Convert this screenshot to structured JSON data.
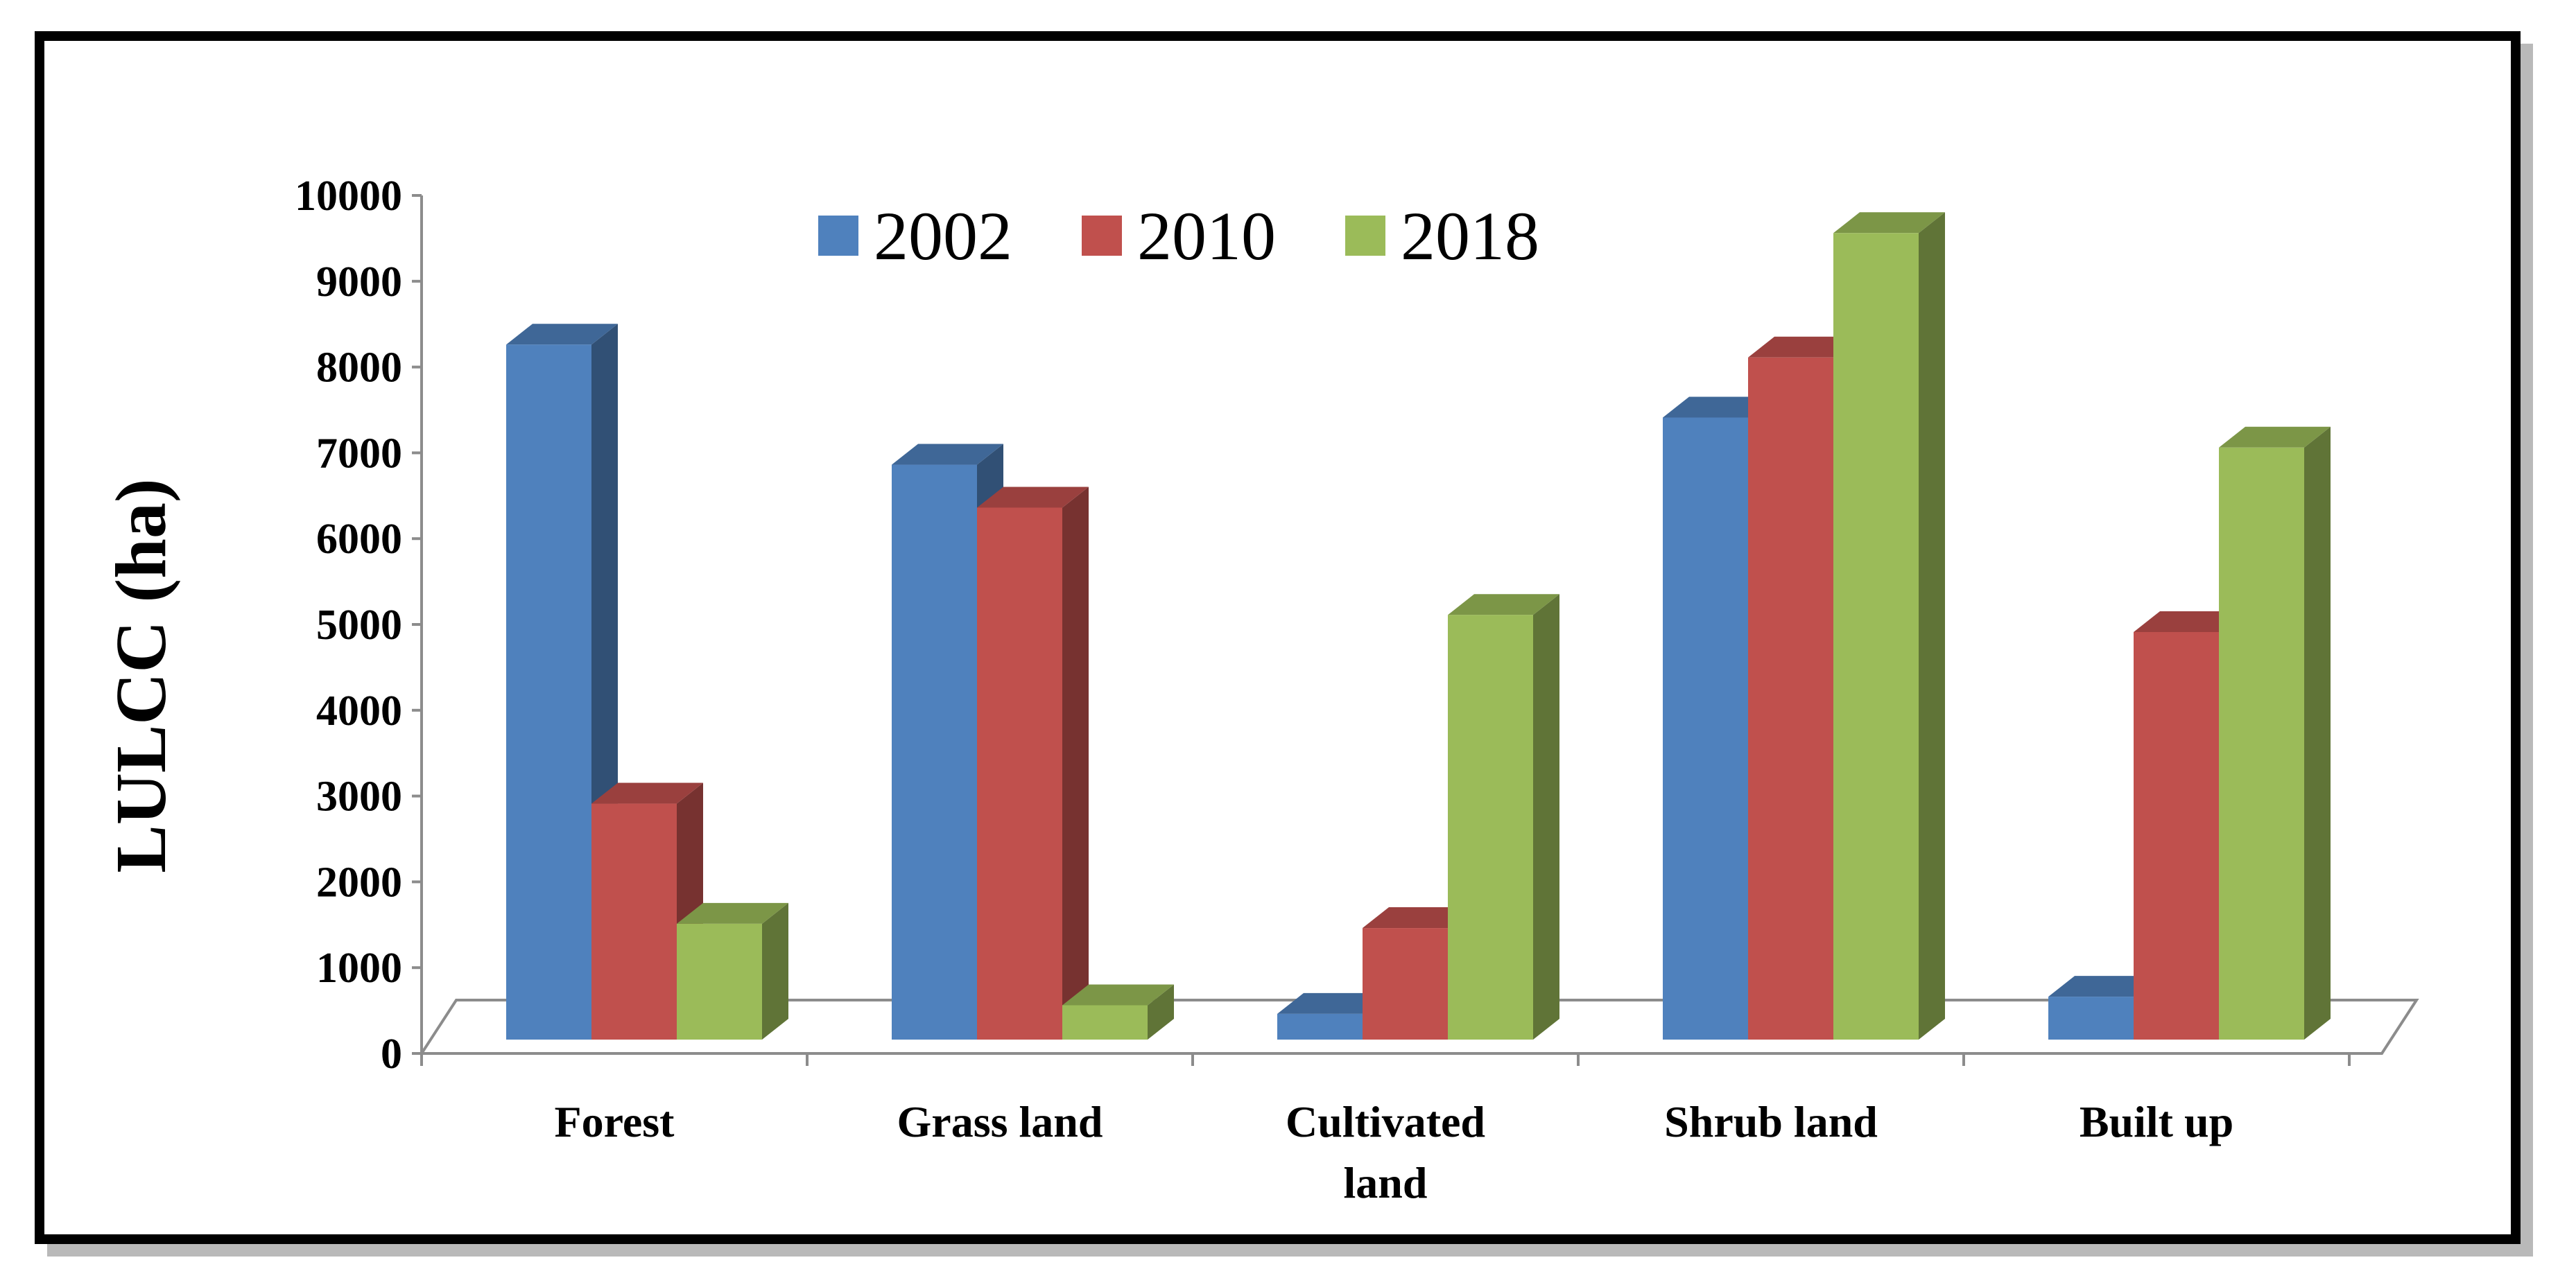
{
  "chart_data": {
    "type": "bar",
    "style": "3d-clustered-column",
    "title": "",
    "xlabel": "",
    "ylabel": "LULCC (ha)",
    "ylim": [
      0,
      10000
    ],
    "y_ticks": [
      0,
      1000,
      2000,
      3000,
      4000,
      5000,
      6000,
      7000,
      8000,
      9000,
      10000
    ],
    "grid": false,
    "legend_position": "top-center",
    "categories": [
      "Forest",
      "Grass land",
      "Cultivated land",
      "Shrub land",
      "Built up"
    ],
    "category_label_lines": [
      [
        "Forest"
      ],
      [
        "Grass land"
      ],
      [
        "Cultivated",
        "land"
      ],
      [
        "Shrub land"
      ],
      [
        "Built up"
      ]
    ],
    "series": [
      {
        "name": "2002",
        "color": "#4f81bd",
        "values": [
          8100,
          6700,
          300,
          7250,
          500
        ]
      },
      {
        "name": "2010",
        "color": "#c0504d",
        "values": [
          2750,
          6200,
          1300,
          7950,
          4750
        ]
      },
      {
        "name": "2018",
        "color": "#9bbb59",
        "values": [
          1350,
          400,
          4950,
          9400,
          6900
        ]
      }
    ]
  }
}
